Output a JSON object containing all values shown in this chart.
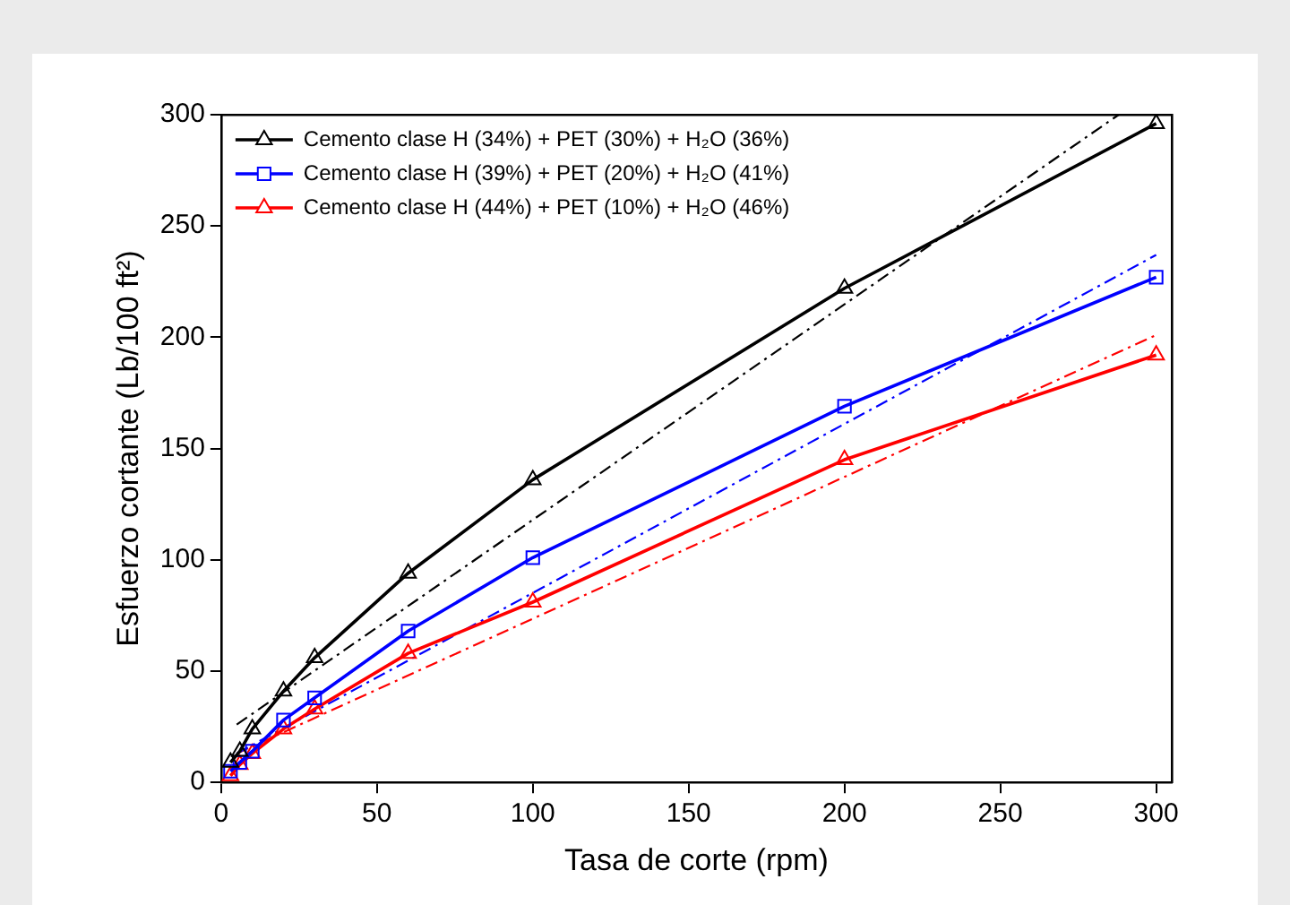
{
  "chart_data": {
    "type": "line",
    "xlabel": "Tasa de corte (rpm)",
    "ylabel": "Esfuerzo cortante (Lb/100 ft²)",
    "x": [
      3,
      6,
      10,
      20,
      30,
      60,
      100,
      200,
      300
    ],
    "series": [
      {
        "name": "Cemento clase H (34%) + PET (30%) + H₂O (36%)",
        "color": "#000000",
        "values": [
          9,
          14,
          24,
          41,
          56,
          94,
          136,
          222,
          296
        ]
      },
      {
        "name": "Cemento clase H (39%) + PET (20%) + H₂O (41%)",
        "color": "#0000ff",
        "marker": "square",
        "values": [
          5,
          9,
          14,
          28,
          38,
          68,
          101,
          169,
          227
        ]
      },
      {
        "name": "Cemento clase H (44%) + PET (10%) + H₂O (46%)",
        "color": "#ff0000",
        "values": [
          3,
          8,
          13,
          24,
          33,
          58,
          81,
          145,
          192
        ]
      },
      {
        "color": "#000000",
        "marker": "none",
        "line_style": "dashed",
        "x": [
          5,
          288
        ],
        "values": [
          26,
          300
        ]
      },
      {
        "color": "#0000ff",
        "marker": "none",
        "line_style": "dashed",
        "x": [
          5,
          300
        ],
        "values": [
          13,
          237
        ]
      },
      {
        "color": "#ff0000",
        "marker": "none",
        "line_style": "dashed",
        "x": [
          5,
          300
        ],
        "values": [
          13,
          201
        ]
      }
    ],
    "xlim": [
      0,
      305
    ],
    "xticks": [
      0,
      50,
      100,
      150,
      200,
      250,
      300
    ],
    "ylim": [
      0,
      300
    ],
    "yticks": [
      0,
      50,
      100,
      150,
      200,
      250,
      300
    ],
    "grid": false,
    "legend": "top left",
    "marker": "triangle",
    "line_style": "solid"
  }
}
